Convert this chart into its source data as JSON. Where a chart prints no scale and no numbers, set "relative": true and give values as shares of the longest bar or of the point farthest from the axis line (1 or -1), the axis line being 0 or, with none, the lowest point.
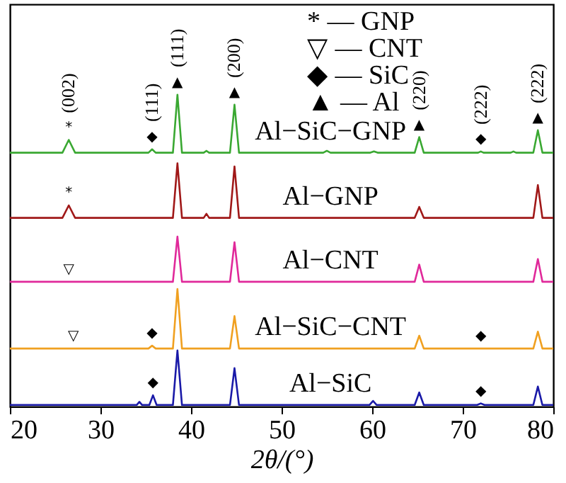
{
  "chart_data": {
    "type": "line",
    "relative": true,
    "xlabel": "2θ/(°)",
    "xlim": [
      20,
      80
    ],
    "xticks": [
      20,
      30,
      40,
      50,
      60,
      70,
      80
    ],
    "grid": false,
    "marker": "none",
    "line_style": "solid",
    "series": [
      {
        "name": "Al−SiC−GNP",
        "color": "#3aa832",
        "x": [
          20,
          25.8,
          26.5,
          27.2,
          34.5,
          35.3,
          35.7,
          36.1,
          38.0,
          38.5,
          39.0,
          41.4,
          41.7,
          42.0,
          44.3,
          44.8,
          45.3,
          54.6,
          55,
          55.4,
          59.8,
          60.2,
          60.6,
          64.7,
          65.2,
          65.7,
          71.7,
          72,
          72.3,
          75.3,
          75.6,
          75.9,
          77.8,
          78.3,
          78.8,
          80
        ],
        "values": [
          0.814,
          0.814,
          0.855,
          0.814,
          0.814,
          0.814,
          0.825,
          0.814,
          0.814,
          1.0,
          0.814,
          0.814,
          0.82,
          0.814,
          0.814,
          0.968,
          0.814,
          0.814,
          0.82,
          0.814,
          0.814,
          0.818,
          0.814,
          0.814,
          0.864,
          0.814,
          0.814,
          0.818,
          0.814,
          0.814,
          0.818,
          0.814,
          0.814,
          0.886,
          0.814,
          0.814
        ]
      },
      {
        "name": "Al−GNP",
        "color": "#a01818",
        "x": [
          20,
          25.8,
          26.5,
          27.2,
          38.0,
          38.5,
          39.0,
          41.4,
          41.7,
          42.0,
          44.3,
          44.8,
          45.3,
          64.7,
          65.2,
          65.7,
          77.8,
          78.3,
          78.8,
          80
        ],
        "values": [
          0.605,
          0.605,
          0.645,
          0.605,
          0.605,
          0.78,
          0.605,
          0.605,
          0.618,
          0.605,
          0.605,
          0.77,
          0.605,
          0.605,
          0.64,
          0.605,
          0.605,
          0.71,
          0.605,
          0.605
        ]
      },
      {
        "name": "Al−CNT",
        "color": "#e0299a",
        "x": [
          20,
          38.0,
          38.5,
          39.0,
          44.3,
          44.8,
          45.3,
          64.7,
          65.2,
          65.7,
          77.8,
          78.3,
          78.8,
          80
        ],
        "values": [
          0.4,
          0.4,
          0.545,
          0.4,
          0.4,
          0.527,
          0.4,
          0.4,
          0.455,
          0.4,
          0.4,
          0.473,
          0.4,
          0.4
        ]
      },
      {
        "name": "Al−SiC−CNT",
        "color": "#f0a020",
        "x": [
          20,
          35.3,
          35.7,
          36.1,
          38.0,
          38.5,
          39.0,
          44.3,
          44.8,
          45.3,
          64.7,
          65.2,
          65.7,
          77.8,
          78.3,
          78.8,
          80
        ],
        "values": [
          0.186,
          0.186,
          0.195,
          0.186,
          0.186,
          0.377,
          0.186,
          0.186,
          0.29,
          0.186,
          0.186,
          0.227,
          0.186,
          0.186,
          0.24,
          0.186,
          0.186
        ]
      },
      {
        "name": "Al−SiC",
        "color": "#1a1aa8",
        "x": [
          20,
          34.0,
          34.3,
          34.6,
          35.4,
          35.8,
          36.2,
          38.0,
          38.5,
          39.0,
          44.3,
          44.8,
          45.3,
          59.7,
          60.1,
          60.5,
          64.7,
          65.2,
          65.7,
          71.6,
          72,
          72.4,
          77.8,
          78.3,
          78.8,
          80
        ],
        "values": [
          0.005,
          0.005,
          0.015,
          0.005,
          0.005,
          0.036,
          0.005,
          0.005,
          0.18,
          0.005,
          0.005,
          0.123,
          0.005,
          0.005,
          0.018,
          0.005,
          0.005,
          0.045,
          0.005,
          0.005,
          0.01,
          0.005,
          0.005,
          0.064,
          0.005,
          0.005
        ]
      }
    ],
    "annotations": [
      "* — GNP",
      "▽ — CNT",
      "◆ — SiC",
      "▲ — Al",
      {
        "text": "(002)",
        "x": 26.5,
        "y": 0.855
      },
      {
        "text": "*",
        "x": 26.5,
        "y": 0.855
      },
      {
        "text": "(111)",
        "x": 35.7,
        "y": 0.825
      },
      {
        "text": "◆",
        "x": 35.7,
        "y": 0.825
      },
      {
        "text": "(111)",
        "x": 38.5,
        "y": 1.0
      },
      {
        "text": "▲",
        "x": 38.5,
        "y": 1.0
      },
      {
        "text": "(200)",
        "x": 44.8,
        "y": 0.968
      },
      {
        "text": "▲",
        "x": 44.8,
        "y": 0.968
      },
      {
        "text": "(220)",
        "x": 65.2,
        "y": 0.864
      },
      {
        "text": "▲",
        "x": 65.2,
        "y": 0.864
      },
      {
        "text": "(222)",
        "x": 72,
        "y": 0.818
      },
      {
        "text": "◆",
        "x": 72,
        "y": 0.818
      },
      {
        "text": "(222)",
        "x": 78.3,
        "y": 0.886
      },
      {
        "text": "▲",
        "x": 78.3,
        "y": 0.886
      },
      {
        "text": "*",
        "x": 26.5,
        "y": 0.645
      },
      {
        "text": "▽",
        "x": 26.5,
        "y": 0.4
      },
      {
        "text": "▽",
        "x": 27,
        "y": 0.186
      },
      {
        "text": "◆",
        "x": 35.7,
        "y": 0.195
      },
      {
        "text": "◆",
        "x": 72,
        "y": 0.186
      },
      {
        "text": "◆",
        "x": 35.8,
        "y": 0.036
      },
      {
        "text": "◆",
        "x": 72,
        "y": 0.01
      }
    ]
  }
}
